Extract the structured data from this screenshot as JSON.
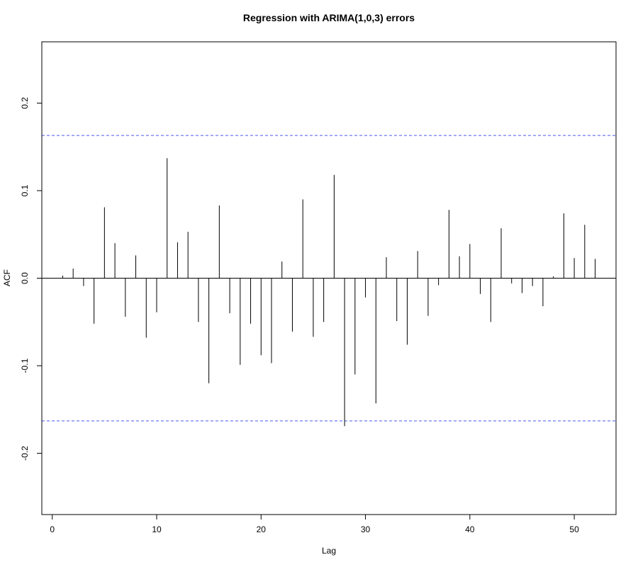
{
  "chart_data": {
    "type": "bar",
    "title": "Regression with ARIMA(1,0,3) errors",
    "xlabel": "Lag",
    "ylabel": "ACF",
    "xlim": [
      -1,
      54
    ],
    "ylim": [
      -0.27,
      0.27
    ],
    "x_ticks": [
      0,
      10,
      20,
      30,
      40,
      50
    ],
    "y_ticks": [
      -0.2,
      -0.1,
      0.0,
      0.1,
      0.2
    ],
    "x_tick_labels": [
      "0",
      "10",
      "20",
      "30",
      "40",
      "50"
    ],
    "y_tick_labels": [
      "-0.2",
      "-0.1",
      "0.0",
      "0.1",
      "0.2"
    ],
    "confidence_bounds": [
      0.163,
      -0.163
    ],
    "bound_color": "#4a5af0",
    "bar_color": "#000000",
    "x": [
      1,
      2,
      3,
      4,
      5,
      6,
      7,
      8,
      9,
      10,
      11,
      12,
      13,
      14,
      15,
      16,
      17,
      18,
      19,
      20,
      21,
      22,
      23,
      24,
      25,
      26,
      27,
      28,
      29,
      30,
      31,
      32,
      33,
      34,
      35,
      36,
      37,
      38,
      39,
      40,
      41,
      42,
      43,
      44,
      45,
      46,
      47,
      48,
      49,
      50,
      51,
      52
    ],
    "values": [
      0.003,
      0.011,
      -0.009,
      -0.052,
      0.081,
      0.04,
      -0.044,
      0.026,
      -0.068,
      -0.039,
      0.137,
      0.041,
      0.053,
      -0.05,
      -0.12,
      0.083,
      -0.04,
      -0.099,
      -0.052,
      -0.088,
      -0.097,
      0.019,
      -0.061,
      0.09,
      -0.067,
      -0.05,
      0.118,
      -0.169,
      -0.11,
      -0.022,
      -0.143,
      0.024,
      -0.049,
      -0.076,
      0.031,
      -0.043,
      -0.008,
      0.078,
      0.025,
      0.039,
      -0.018,
      -0.05,
      0.057,
      -0.006,
      -0.017,
      -0.009,
      -0.032,
      0.002,
      0.074,
      0.023,
      0.061,
      0.022
    ],
    "grid": false
  }
}
